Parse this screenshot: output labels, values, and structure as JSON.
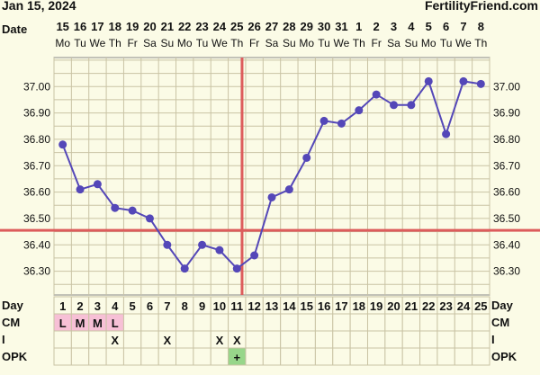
{
  "header": {
    "date": "Jan 15, 2024",
    "brand": "FertilityFriend.com"
  },
  "rows": {
    "date_label": "Date",
    "day_label": "Day",
    "cm_label": "CM",
    "i_label": "I",
    "opk_label": "OPK"
  },
  "chart_data": {
    "type": "line",
    "title": "",
    "xlabel": "",
    "ylabel": "",
    "dates": [
      "15",
      "16",
      "17",
      "18",
      "19",
      "20",
      "21",
      "22",
      "23",
      "24",
      "25",
      "26",
      "27",
      "28",
      "29",
      "30",
      "31",
      "1",
      "2",
      "3",
      "4",
      "5",
      "6",
      "7",
      "8"
    ],
    "weekdays": [
      "Mo",
      "Tu",
      "We",
      "Th",
      "Fr",
      "Sa",
      "Su",
      "Mo",
      "Tu",
      "We",
      "Th",
      "Fr",
      "Sa",
      "Su",
      "Mo",
      "Tu",
      "We",
      "Th",
      "Fr",
      "Sa",
      "Su",
      "Mo",
      "Tu",
      "We",
      "Th"
    ],
    "days": [
      1,
      2,
      3,
      4,
      5,
      6,
      7,
      8,
      9,
      10,
      11,
      12,
      13,
      14,
      15,
      16,
      17,
      18,
      19,
      20,
      21,
      22,
      23,
      24,
      25
    ],
    "temperatures": [
      36.78,
      36.61,
      36.63,
      36.54,
      36.53,
      36.5,
      36.4,
      36.31,
      36.4,
      36.38,
      36.31,
      36.36,
      36.58,
      36.61,
      36.73,
      36.87,
      36.86,
      36.91,
      36.97,
      36.93,
      36.93,
      37.02,
      36.82,
      37.02,
      37.01
    ],
    "ylim": [
      36.21,
      37.11
    ],
    "yticks": [
      "36.30",
      "36.40",
      "36.50",
      "36.60",
      "36.70",
      "36.80",
      "36.90",
      "37.00"
    ],
    "coverline": 36.455,
    "ovulation_day": 12,
    "cm": [
      "L",
      "M",
      "M",
      "L",
      "",
      "",
      "",
      "",
      "",
      "",
      "",
      "",
      "",
      "",
      "",
      "",
      "",
      "",
      "",
      "",
      "",
      "",
      "",
      "",
      ""
    ],
    "intercourse": [
      "",
      "",
      "",
      "X",
      "",
      "",
      "X",
      "",
      "",
      "X",
      "X",
      "",
      "",
      "",
      "",
      "",
      "",
      "",
      "",
      "",
      "",
      "",
      "",
      "",
      ""
    ],
    "opk": [
      "",
      "",
      "",
      "",
      "",
      "",
      "",
      "",
      "",
      "",
      "+",
      "",
      "",
      "",
      "",
      "",
      "",
      "",
      "",
      "",
      "",
      "",
      "",
      "",
      ""
    ],
    "grid": true,
    "colors": {
      "line": "#5447b8",
      "marker": "#5447b8",
      "coverline": "#dd5c5c",
      "ovulation": "#dd5c5c",
      "cm_fill": "#f7c0d6",
      "opk_fill": "#97d68a",
      "grid": "#c9c3a4",
      "background": "#fbfbe6"
    }
  }
}
